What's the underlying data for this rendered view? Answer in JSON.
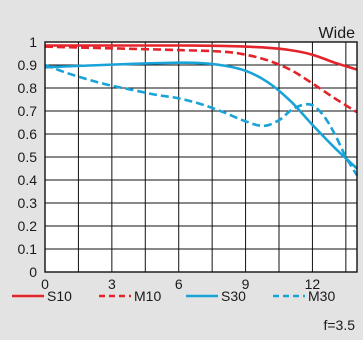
{
  "chart_data": {
    "type": "line",
    "title": "Wide",
    "xlabel": "",
    "ylabel": "",
    "footnote": "f=3.5",
    "xlim": [
      0,
      14
    ],
    "ylim": [
      0,
      1
    ],
    "x_ticks": [
      0,
      3,
      6,
      9,
      12
    ],
    "x_tick_labels": [
      "0",
      "3",
      "6",
      "9",
      "12"
    ],
    "x_minor_gridlines": [
      1.5,
      4.5,
      7.5,
      10.5,
      13.5
    ],
    "y_ticks": [
      0,
      0.1,
      0.2,
      0.3,
      0.4,
      0.5,
      0.6,
      0.7,
      0.8,
      0.9,
      1
    ],
    "y_tick_labels": [
      "0",
      "0.1",
      "0.2",
      "0.3",
      "0.4",
      "0.5",
      "0.6",
      "0.7",
      "0.8",
      "0.9",
      "1"
    ],
    "grid": true,
    "legend_position": "bottom",
    "series": [
      {
        "name": "S10",
        "color": "#e3242b",
        "dash": "solid",
        "points": [
          [
            0,
            0.985
          ],
          [
            2,
            0.985
          ],
          [
            4,
            0.985
          ],
          [
            6,
            0.985
          ],
          [
            8,
            0.983
          ],
          [
            9,
            0.98
          ],
          [
            10,
            0.975
          ],
          [
            11,
            0.965
          ],
          [
            12,
            0.945
          ],
          [
            13,
            0.91
          ],
          [
            14,
            0.88
          ]
        ]
      },
      {
        "name": "M10",
        "color": "#e3242b",
        "dash": "dashed",
        "points": [
          [
            0,
            0.98
          ],
          [
            2,
            0.975
          ],
          [
            4,
            0.97
          ],
          [
            6,
            0.965
          ],
          [
            8,
            0.958
          ],
          [
            9,
            0.945
          ],
          [
            10,
            0.92
          ],
          [
            11,
            0.88
          ],
          [
            12,
            0.82
          ],
          [
            13,
            0.755
          ],
          [
            14,
            0.695
          ]
        ]
      },
      {
        "name": "S30",
        "color": "#1aa3d8",
        "dash": "solid",
        "points": [
          [
            0,
            0.89
          ],
          [
            2,
            0.898
          ],
          [
            4,
            0.905
          ],
          [
            6,
            0.91
          ],
          [
            7,
            0.908
          ],
          [
            8,
            0.898
          ],
          [
            9,
            0.875
          ],
          [
            10,
            0.825
          ],
          [
            11,
            0.745
          ],
          [
            12,
            0.64
          ],
          [
            13,
            0.54
          ],
          [
            14,
            0.45
          ]
        ]
      },
      {
        "name": "M30",
        "color": "#1aa3d8",
        "dash": "dashed",
        "points": [
          [
            0,
            0.9
          ],
          [
            1,
            0.865
          ],
          [
            2,
            0.835
          ],
          [
            3,
            0.81
          ],
          [
            4,
            0.79
          ],
          [
            5,
            0.77
          ],
          [
            6,
            0.755
          ],
          [
            7,
            0.73
          ],
          [
            8,
            0.695
          ],
          [
            9,
            0.655
          ],
          [
            9.8,
            0.635
          ],
          [
            10.5,
            0.66
          ],
          [
            11,
            0.7
          ],
          [
            11.5,
            0.725
          ],
          [
            12,
            0.725
          ],
          [
            12.5,
            0.68
          ],
          [
            13,
            0.6
          ],
          [
            13.5,
            0.5
          ],
          [
            14,
            0.42
          ]
        ]
      }
    ]
  }
}
